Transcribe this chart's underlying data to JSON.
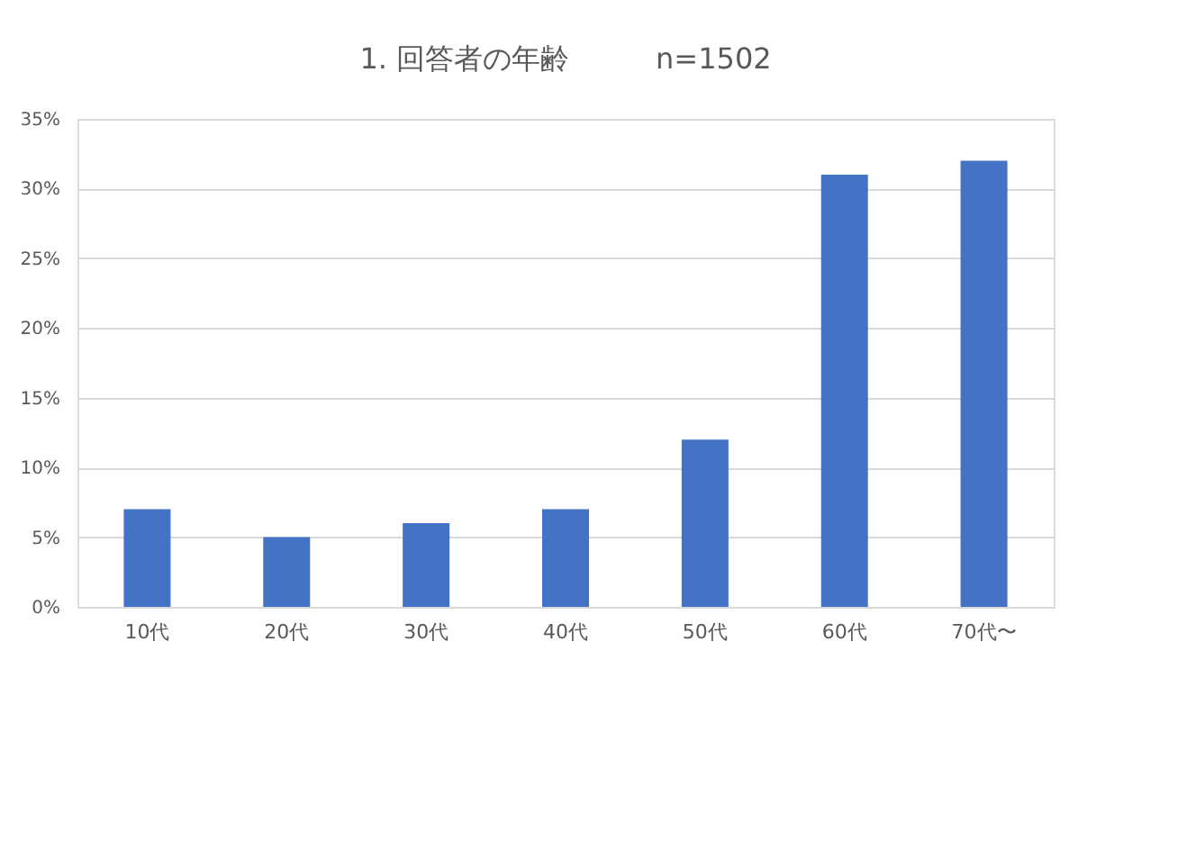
{
  "chart_data": {
    "type": "bar",
    "title": "1. 回答者の年齢　　　n=1502",
    "categories": [
      "10代",
      "20代",
      "30代",
      "40代",
      "50代",
      "60代",
      "70代〜"
    ],
    "series": [
      {
        "color": "#4472c4",
        "values": [
          7,
          5,
          6,
          7,
          12,
          31,
          32
        ]
      }
    ],
    "ylim": [
      0,
      35
    ],
    "yticks": [
      {
        "value": 0,
        "label": "0%"
      },
      {
        "value": 5,
        "label": "5%"
      },
      {
        "value": 10,
        "label": "10%"
      },
      {
        "value": 15,
        "label": "15%"
      },
      {
        "value": 20,
        "label": "20%"
      },
      {
        "value": 25,
        "label": "25%"
      },
      {
        "value": 30,
        "label": "30%"
      },
      {
        "value": 35,
        "label": "35%"
      }
    ],
    "grid": "y",
    "legend": false
  }
}
